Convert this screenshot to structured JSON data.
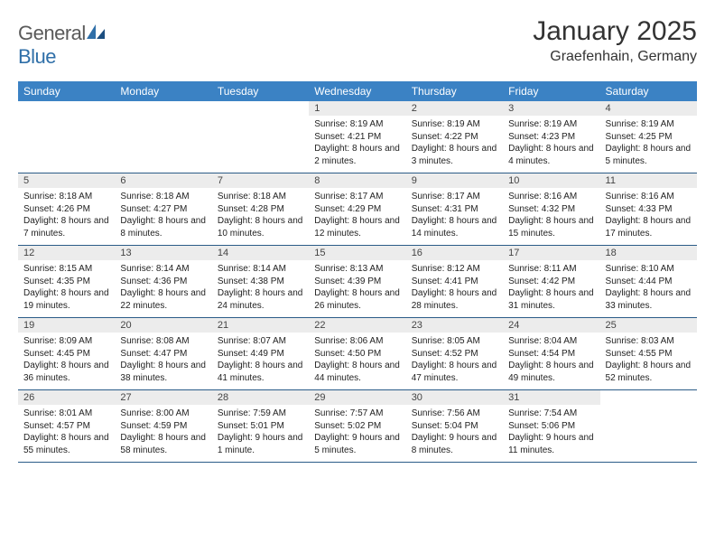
{
  "logo": {
    "text1": "General",
    "text2": "Blue"
  },
  "title": "January 2025",
  "location": "Graefenhain, Germany",
  "colors": {
    "header_bg": "#3b82c4",
    "header_text": "#ffffff",
    "rule": "#2b5c88",
    "daynum_bg": "#ececec",
    "logo_gray": "#5a5a5a",
    "logo_blue": "#2f6fa8"
  },
  "weekdays": [
    "Sunday",
    "Monday",
    "Tuesday",
    "Wednesday",
    "Thursday",
    "Friday",
    "Saturday"
  ],
  "weeks": [
    [
      {
        "num": "",
        "lines": []
      },
      {
        "num": "",
        "lines": []
      },
      {
        "num": "",
        "lines": []
      },
      {
        "num": "1",
        "lines": [
          "Sunrise: 8:19 AM",
          "Sunset: 4:21 PM",
          "Daylight: 8 hours and 2 minutes."
        ]
      },
      {
        "num": "2",
        "lines": [
          "Sunrise: 8:19 AM",
          "Sunset: 4:22 PM",
          "Daylight: 8 hours and 3 minutes."
        ]
      },
      {
        "num": "3",
        "lines": [
          "Sunrise: 8:19 AM",
          "Sunset: 4:23 PM",
          "Daylight: 8 hours and 4 minutes."
        ]
      },
      {
        "num": "4",
        "lines": [
          "Sunrise: 8:19 AM",
          "Sunset: 4:25 PM",
          "Daylight: 8 hours and 5 minutes."
        ]
      }
    ],
    [
      {
        "num": "5",
        "lines": [
          "Sunrise: 8:18 AM",
          "Sunset: 4:26 PM",
          "Daylight: 8 hours and 7 minutes."
        ]
      },
      {
        "num": "6",
        "lines": [
          "Sunrise: 8:18 AM",
          "Sunset: 4:27 PM",
          "Daylight: 8 hours and 8 minutes."
        ]
      },
      {
        "num": "7",
        "lines": [
          "Sunrise: 8:18 AM",
          "Sunset: 4:28 PM",
          "Daylight: 8 hours and 10 minutes."
        ]
      },
      {
        "num": "8",
        "lines": [
          "Sunrise: 8:17 AM",
          "Sunset: 4:29 PM",
          "Daylight: 8 hours and 12 minutes."
        ]
      },
      {
        "num": "9",
        "lines": [
          "Sunrise: 8:17 AM",
          "Sunset: 4:31 PM",
          "Daylight: 8 hours and 14 minutes."
        ]
      },
      {
        "num": "10",
        "lines": [
          "Sunrise: 8:16 AM",
          "Sunset: 4:32 PM",
          "Daylight: 8 hours and 15 minutes."
        ]
      },
      {
        "num": "11",
        "lines": [
          "Sunrise: 8:16 AM",
          "Sunset: 4:33 PM",
          "Daylight: 8 hours and 17 minutes."
        ]
      }
    ],
    [
      {
        "num": "12",
        "lines": [
          "Sunrise: 8:15 AM",
          "Sunset: 4:35 PM",
          "Daylight: 8 hours and 19 minutes."
        ]
      },
      {
        "num": "13",
        "lines": [
          "Sunrise: 8:14 AM",
          "Sunset: 4:36 PM",
          "Daylight: 8 hours and 22 minutes."
        ]
      },
      {
        "num": "14",
        "lines": [
          "Sunrise: 8:14 AM",
          "Sunset: 4:38 PM",
          "Daylight: 8 hours and 24 minutes."
        ]
      },
      {
        "num": "15",
        "lines": [
          "Sunrise: 8:13 AM",
          "Sunset: 4:39 PM",
          "Daylight: 8 hours and 26 minutes."
        ]
      },
      {
        "num": "16",
        "lines": [
          "Sunrise: 8:12 AM",
          "Sunset: 4:41 PM",
          "Daylight: 8 hours and 28 minutes."
        ]
      },
      {
        "num": "17",
        "lines": [
          "Sunrise: 8:11 AM",
          "Sunset: 4:42 PM",
          "Daylight: 8 hours and 31 minutes."
        ]
      },
      {
        "num": "18",
        "lines": [
          "Sunrise: 8:10 AM",
          "Sunset: 4:44 PM",
          "Daylight: 8 hours and 33 minutes."
        ]
      }
    ],
    [
      {
        "num": "19",
        "lines": [
          "Sunrise: 8:09 AM",
          "Sunset: 4:45 PM",
          "Daylight: 8 hours and 36 minutes."
        ]
      },
      {
        "num": "20",
        "lines": [
          "Sunrise: 8:08 AM",
          "Sunset: 4:47 PM",
          "Daylight: 8 hours and 38 minutes."
        ]
      },
      {
        "num": "21",
        "lines": [
          "Sunrise: 8:07 AM",
          "Sunset: 4:49 PM",
          "Daylight: 8 hours and 41 minutes."
        ]
      },
      {
        "num": "22",
        "lines": [
          "Sunrise: 8:06 AM",
          "Sunset: 4:50 PM",
          "Daylight: 8 hours and 44 minutes."
        ]
      },
      {
        "num": "23",
        "lines": [
          "Sunrise: 8:05 AM",
          "Sunset: 4:52 PM",
          "Daylight: 8 hours and 47 minutes."
        ]
      },
      {
        "num": "24",
        "lines": [
          "Sunrise: 8:04 AM",
          "Sunset: 4:54 PM",
          "Daylight: 8 hours and 49 minutes."
        ]
      },
      {
        "num": "25",
        "lines": [
          "Sunrise: 8:03 AM",
          "Sunset: 4:55 PM",
          "Daylight: 8 hours and 52 minutes."
        ]
      }
    ],
    [
      {
        "num": "26",
        "lines": [
          "Sunrise: 8:01 AM",
          "Sunset: 4:57 PM",
          "Daylight: 8 hours and 55 minutes."
        ]
      },
      {
        "num": "27",
        "lines": [
          "Sunrise: 8:00 AM",
          "Sunset: 4:59 PM",
          "Daylight: 8 hours and 58 minutes."
        ]
      },
      {
        "num": "28",
        "lines": [
          "Sunrise: 7:59 AM",
          "Sunset: 5:01 PM",
          "Daylight: 9 hours and 1 minute."
        ]
      },
      {
        "num": "29",
        "lines": [
          "Sunrise: 7:57 AM",
          "Sunset: 5:02 PM",
          "Daylight: 9 hours and 5 minutes."
        ]
      },
      {
        "num": "30",
        "lines": [
          "Sunrise: 7:56 AM",
          "Sunset: 5:04 PM",
          "Daylight: 9 hours and 8 minutes."
        ]
      },
      {
        "num": "31",
        "lines": [
          "Sunrise: 7:54 AM",
          "Sunset: 5:06 PM",
          "Daylight: 9 hours and 11 minutes."
        ]
      },
      {
        "num": "",
        "lines": []
      }
    ]
  ]
}
